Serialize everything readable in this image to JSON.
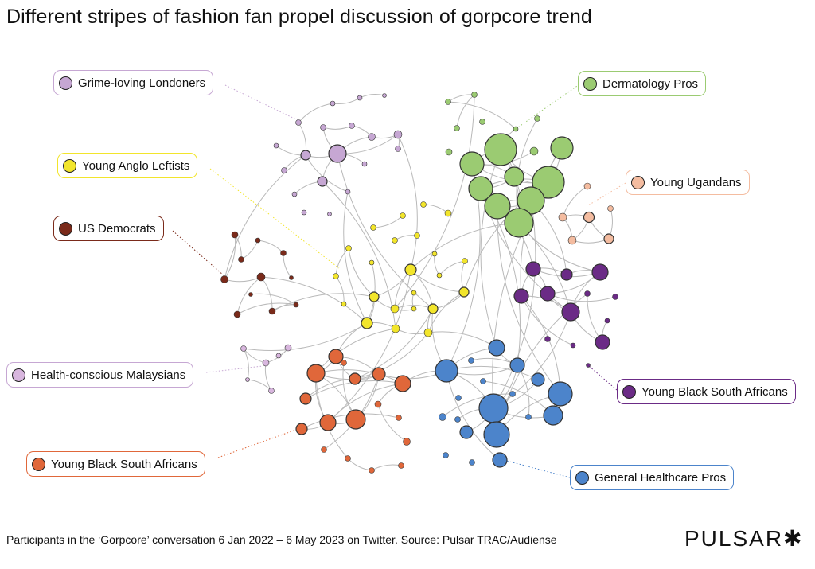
{
  "title": "Different stripes of fashion fan propel discussion of gorpcore trend",
  "footer": "Participants in the ‘Gorpcore’ conversation 6 Jan 2022 – 6 May 2023 on Twitter. Source: Pulsar TRAC/Audiense",
  "brand": "PULSAR✱",
  "communities": [
    {
      "label": "Grime-loving Londoners",
      "color": "#c6a7d3",
      "border": "#c6a7d3"
    },
    {
      "label": "Young Anglo Leftists",
      "color": "#f2e52b",
      "border": "#f2e52b"
    },
    {
      "label": "US Democrats",
      "color": "#7a2a1a",
      "border": "#7a2a1a"
    },
    {
      "label": "Health-conscious Malaysians",
      "color": "#d8b6de",
      "border": "#c6a7d3"
    },
    {
      "label": "Young Black South Africans",
      "color": "#e0673a",
      "border": "#e0673a"
    },
    {
      "label": "Dermatology Pros",
      "color": "#9bcb72",
      "border": "#9bcb72"
    },
    {
      "label": "Young Ugandans",
      "color": "#f4bca0",
      "border": "#f4bca0"
    },
    {
      "label": "Young Black South Africans",
      "color": "#6b2b86",
      "border": "#6b2b86"
    },
    {
      "label": "General Healthcare Pros",
      "color": "#4c84cb",
      "border": "#4c84cb"
    }
  ]
}
